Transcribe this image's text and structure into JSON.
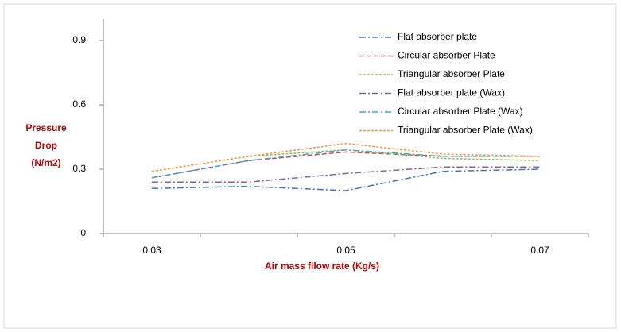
{
  "chart_data": {
    "type": "line",
    "ylabel": [
      "Pressure",
      "Drop",
      "(N/m2)"
    ],
    "xlabel": "Air mass fllow rate (Kg/s)",
    "categories": [
      "0.03",
      null,
      "0.05",
      null,
      "0.07"
    ],
    "ylim": [
      0,
      1.0
    ],
    "yticks": [
      0,
      0.3,
      0.6,
      0.9
    ],
    "series": [
      {
        "name": "Flat absorber plate",
        "color": "#4472c4",
        "dash": "dashdot",
        "values": [
          0.21,
          0.22,
          0.2,
          0.29,
          0.3
        ]
      },
      {
        "name": "Circular absorber Plate",
        "color": "#c0504d",
        "dash": "dash",
        "values": [
          0.26,
          0.34,
          0.38,
          0.36,
          0.36
        ]
      },
      {
        "name": "Triangular absorber Plate",
        "color": "#9bbb59",
        "dash": "shortdash",
        "values": [
          0.29,
          0.36,
          0.39,
          0.35,
          0.34
        ]
      },
      {
        "name": "Flat absorber plate (Wax)",
        "color": "#8064a2",
        "dash": "dashdot",
        "values": [
          0.24,
          0.24,
          0.28,
          0.31,
          0.31
        ]
      },
      {
        "name": "Circular absorber Plate (Wax)",
        "color": "#4bacc6",
        "dash": "dashdot",
        "values": [
          0.26,
          0.34,
          0.39,
          0.36,
          0.36
        ]
      },
      {
        "name": "Triangular absorber Plate  (Wax)",
        "color": "#f79646",
        "dash": "shortdash",
        "values": [
          0.29,
          0.36,
          0.42,
          0.37,
          0.36
        ]
      }
    ]
  }
}
